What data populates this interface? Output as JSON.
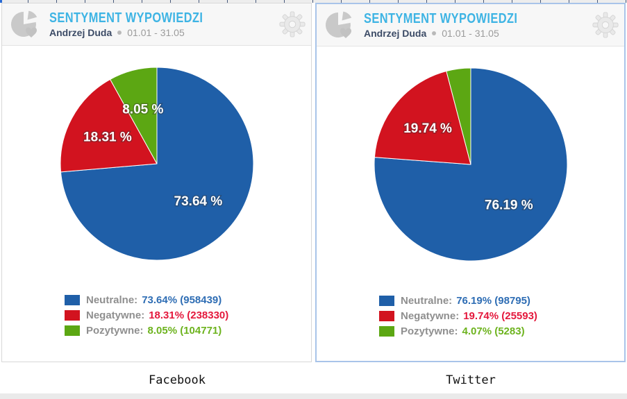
{
  "colors": {
    "accent_title": "#3eb4e4",
    "panel_selected_border": "#a8c4e9",
    "panel_border": "#d8d8d8",
    "header_bg": "#f7f7f7",
    "neutral_blue": "#1f5fa8",
    "negative_red": "#d2131f",
    "positive_green": "#5ca713"
  },
  "icons": {
    "header_icon": "pie-heart-icon",
    "settings_icon": "gear-icon",
    "subtitle_separator": "dot"
  },
  "widgets": [
    {
      "caption": "Facebook",
      "header": {
        "title": "SENTYMENT WYPOWIEDZI",
        "subject": "Andrzej Duda",
        "date_range": "01.01 - 31.05"
      },
      "legend": [
        {
          "name": "Neutralne:",
          "value": "73.64% (958439)",
          "value_color": "#2e6db4"
        },
        {
          "name": "Negatywne:",
          "value": "18.31% (238330)",
          "value_color": "#e4183c"
        },
        {
          "name": "Pozytywne:",
          "value": "8.05% (104771)",
          "value_color": "#6db31e"
        }
      ]
    },
    {
      "caption": "Twitter",
      "header": {
        "title": "SENTYMENT WYPOWIEDZI",
        "subject": "Andrzej Duda",
        "date_range": "01.01 - 31.05"
      },
      "legend": [
        {
          "name": "Neutralne:",
          "value": "76.19% (98795)",
          "value_color": "#2e6db4"
        },
        {
          "name": "Negatywne:",
          "value": "19.74% (25593)",
          "value_color": "#e4183c"
        },
        {
          "name": "Pozytywne:",
          "value": "4.07% (5283)",
          "value_color": "#6db31e"
        }
      ]
    }
  ],
  "chart_data": [
    {
      "type": "pie",
      "title": "SENTYMENT WYPOWIEDZI",
      "platform": "Facebook",
      "labels": [
        "Neutralne",
        "Negatywne",
        "Pozytywne"
      ],
      "values_pct": [
        73.64,
        18.31,
        8.05
      ],
      "counts": [
        958439,
        238330,
        104771
      ],
      "colors": [
        "#1f5fa8",
        "#d2131f",
        "#5ca713"
      ],
      "slice_labels": [
        "73.64 %",
        "18.31 %",
        "8.05 %"
      ],
      "start_angle": "12 o'clock",
      "direction": "clockwise",
      "legend_position": "bottom-left"
    },
    {
      "type": "pie",
      "title": "SENTYMENT WYPOWIEDZI",
      "platform": "Twitter",
      "labels": [
        "Neutralne",
        "Negatywne",
        "Pozytywne"
      ],
      "values_pct": [
        76.19,
        19.74,
        4.07
      ],
      "counts": [
        98795,
        25593,
        5283
      ],
      "colors": [
        "#1f5fa8",
        "#d2131f",
        "#5ca713"
      ],
      "slice_labels": [
        "76.19 %",
        "19.74 %",
        ""
      ],
      "start_angle": "12 o'clock",
      "direction": "clockwise",
      "legend_position": "bottom-left"
    }
  ]
}
